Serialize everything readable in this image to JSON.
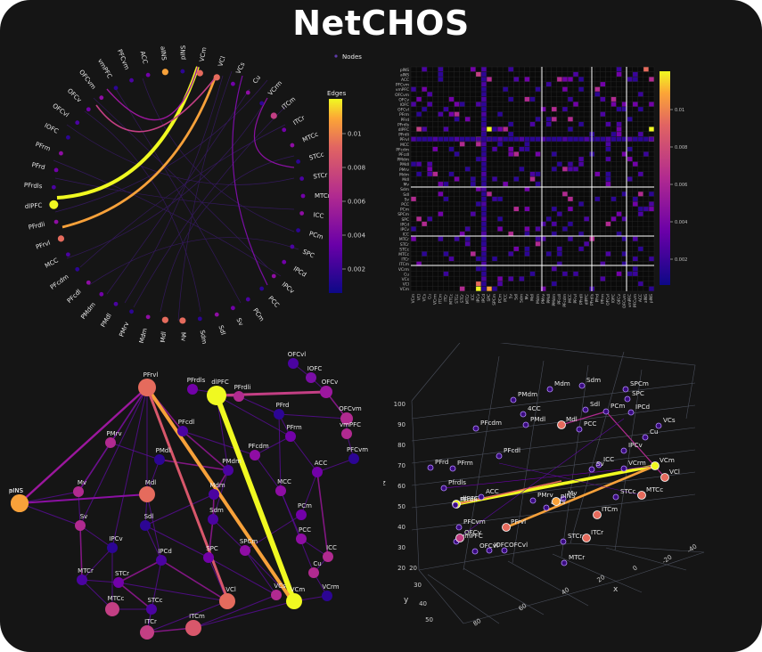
{
  "app": {
    "title": "NetCHOS"
  },
  "colors": {
    "background": "#151515",
    "accent_high": "#f0f921",
    "accent_mid": "#e56b5d",
    "accent_low": "#0d0887"
  },
  "circular": {
    "legend_label": "Nodes",
    "colorbar_title": "Edges",
    "colorbar_ticks": [
      "0.01",
      "0.008",
      "0.006",
      "0.004",
      "0.002"
    ],
    "nodes": [
      "VCm",
      "VCl",
      "VCs",
      "Cu",
      "VCrm",
      "ITCm",
      "ITCr",
      "MTCc",
      "STCc",
      "STCr",
      "MTCr",
      "ICC",
      "PCm",
      "SPC",
      "IPCd",
      "IPCv",
      "PCC",
      "PCm",
      "Sv",
      "Sdl",
      "Sdm",
      "Mv",
      "Mdl",
      "Mdm",
      "PMrv",
      "PMdl",
      "PMdm",
      "PFcdl",
      "PFcdm",
      "MCC",
      "PFrvl",
      "PFrdli",
      "dlPFC",
      "PFrdls",
      "PFrd",
      "PFrm",
      "IOFC",
      "OFCvl",
      "OFCv",
      "OFCvm",
      "vmPFC",
      "PFCvm",
      "ACC",
      "aINS",
      "pINS"
    ]
  },
  "matrix": {
    "colorbar_ticks": [
      "0.01",
      "0.008",
      "0.006",
      "0.004",
      "0.002"
    ],
    "row_labels": [
      "pINS",
      "aINS",
      "ACC",
      "PFCvm",
      "vmPFC",
      "OFCvm",
      "OFCv",
      "IOFC",
      "OFCvl",
      "PFrm",
      "PFrd",
      "PFrdls",
      "dlPFC",
      "PFrdli",
      "PFrvl",
      "MCC",
      "PFcdm",
      "PFcdl",
      "PMdm",
      "PMdl",
      "PMrv",
      "Mdm",
      "Mdl",
      "Mv",
      "Sdm",
      "Sdl",
      "Sv",
      "PCC",
      "PCm",
      "SPCm",
      "SPC",
      "IPCd",
      "IPCv",
      "ICC",
      "MTCr",
      "STCr",
      "STCc",
      "MTCc",
      "ITCr",
      "ITCm",
      "VCrm",
      "Cu",
      "VCs",
      "VCl",
      "VCm"
    ]
  },
  "network": {
    "nodes": [
      "OFCvl",
      "IOFC",
      "OFCv",
      "OFCvm",
      "vmPFC",
      "PFCvm",
      "PFrvl",
      "PFrdls",
      "dlPFC",
      "PFrdli",
      "PFrd",
      "PFcdl",
      "PFrm",
      "PFcdm",
      "PMrv",
      "PMdl",
      "PMdm",
      "ACC",
      "MCC",
      "Mv",
      "Mdl",
      "Mdm",
      "aINS",
      "pINS",
      "Sv",
      "Sdl",
      "Sdm",
      "PCm",
      "PCC",
      "ICC",
      "IPCv",
      "IPCd",
      "SPC",
      "SPCm",
      "Cu",
      "VCrm",
      "MTCr",
      "STCr",
      "VCl",
      "VCs",
      "MTCc",
      "STCc",
      "ITCr",
      "ITCm",
      "VCm"
    ]
  },
  "scatter3d": {
    "z_axis_label": "z",
    "x_axis_label": "x",
    "y_axis_label": "y",
    "z_ticks": [
      "100",
      "90",
      "80",
      "70",
      "60",
      "50",
      "40",
      "30",
      "20"
    ],
    "x_ticks": [
      "-40",
      "-20",
      "0",
      "20",
      "40",
      "60",
      "80"
    ],
    "y_ticks": [
      "20",
      "30",
      "40",
      "50"
    ],
    "nodes": [
      "Mdm",
      "Sdm",
      "SPCm",
      "PMdm",
      "Sdl",
      "SPC",
      "PCm",
      "IPCd",
      "4CC",
      "PMdl",
      "Mdl",
      "PCC",
      "VCs",
      "Cu",
      "PFcdm",
      "PFcdl",
      "IPCv",
      "PFrd",
      "PFrm",
      "ICC",
      "Sv",
      "VCrm",
      "VCm",
      "VCl",
      "dlPFC",
      "ACC",
      "PMrv",
      "Mv",
      "Pfrdls",
      "PFrdli",
      "aINS",
      "pINS",
      "STCc",
      "MTCc",
      "ITCm",
      "PFCvm",
      "PFrvl",
      "vmPFC",
      "OFCv",
      "STCr",
      "ITCr",
      "OFCvl",
      "IOFC",
      "OFCvl",
      "MTCr"
    ]
  }
}
